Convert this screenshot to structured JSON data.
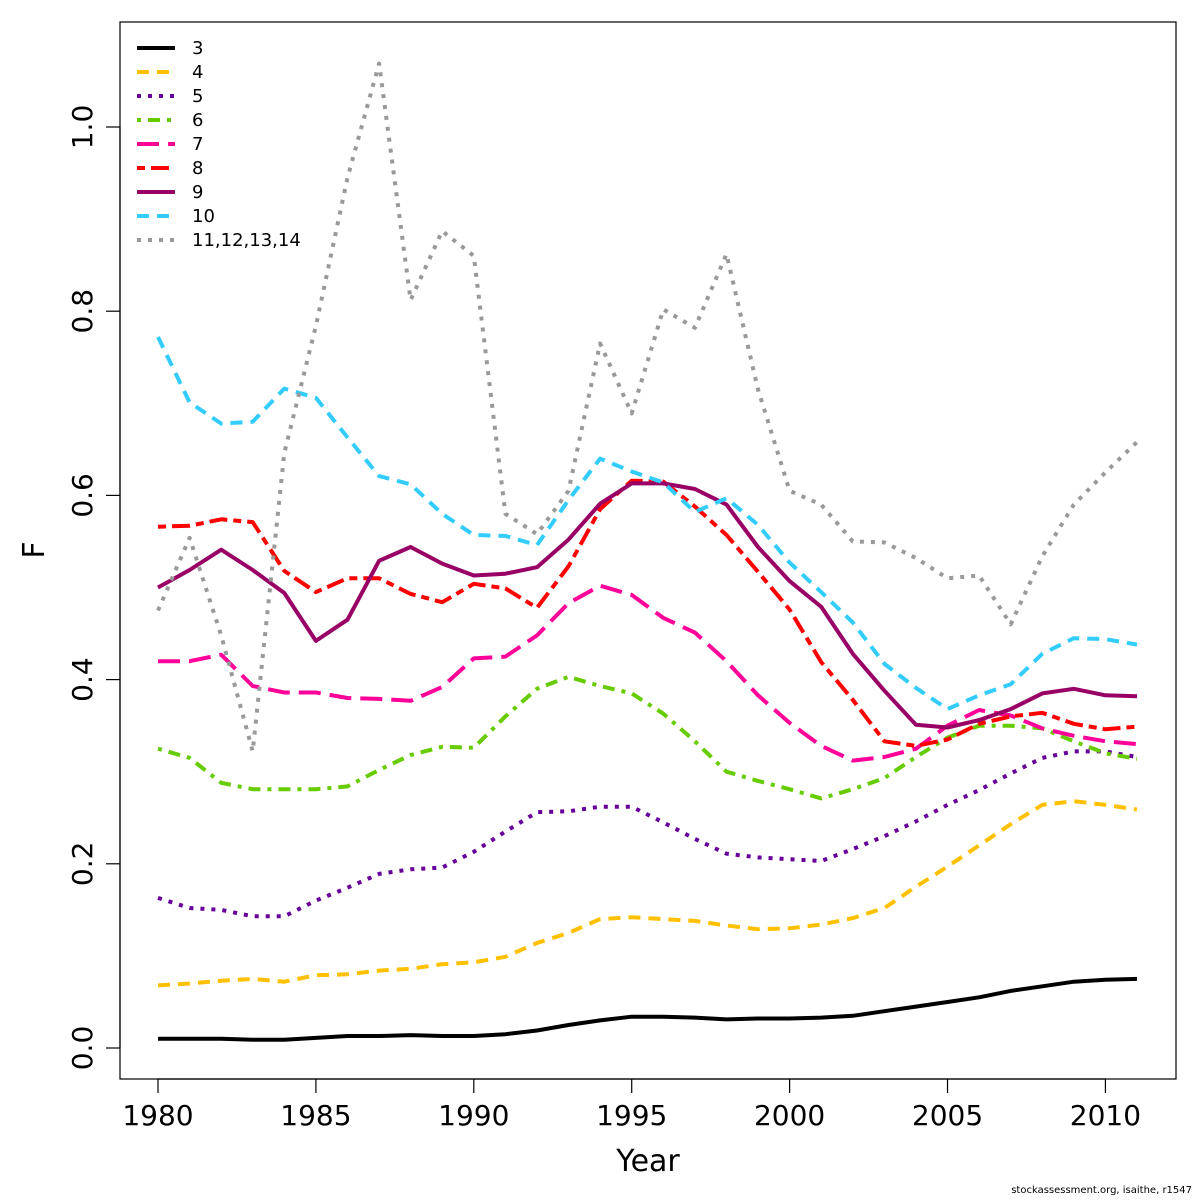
{
  "footer": "stockassessment.org, isaithe, r1547",
  "chart_data": {
    "type": "line",
    "title": "",
    "xlabel": "Year",
    "ylabel": "F",
    "xlim": [
      1980,
      2011
    ],
    "ylim": [
      0,
      1.1
    ],
    "xticks": [
      1980,
      1985,
      1990,
      1995,
      2000,
      2005,
      2010
    ],
    "yticks": [
      0.0,
      0.2,
      0.4,
      0.6,
      0.8,
      1.0
    ],
    "ytick_labels": [
      "0.0",
      "0.2",
      "0.4",
      "0.6",
      "0.8",
      "1.0"
    ],
    "legend_position": "top-left",
    "grid": false,
    "x": [
      1980,
      1981,
      1982,
      1983,
      1984,
      1985,
      1986,
      1987,
      1988,
      1989,
      1990,
      1991,
      1992,
      1993,
      1994,
      1995,
      1996,
      1997,
      1998,
      1999,
      2000,
      2001,
      2002,
      2003,
      2004,
      2005,
      2006,
      2007,
      2008,
      2009,
      2010,
      2011
    ],
    "series": [
      {
        "name": "3",
        "color": "#000000",
        "dash": "solid",
        "values": [
          0.01,
          0.01,
          0.01,
          0.009,
          0.009,
          0.011,
          0.013,
          0.013,
          0.014,
          0.013,
          0.013,
          0.015,
          0.019,
          0.025,
          0.03,
          0.034,
          0.034,
          0.033,
          0.031,
          0.032,
          0.032,
          0.033,
          0.035,
          0.04,
          0.045,
          0.05,
          0.055,
          0.062,
          0.067,
          0.072,
          0.074,
          0.075
        ]
      },
      {
        "name": "4",
        "color": "#FFC000",
        "dash": "dash",
        "values": [
          0.068,
          0.07,
          0.073,
          0.075,
          0.072,
          0.079,
          0.08,
          0.084,
          0.086,
          0.091,
          0.093,
          0.099,
          0.114,
          0.125,
          0.14,
          0.142,
          0.14,
          0.138,
          0.133,
          0.129,
          0.13,
          0.134,
          0.141,
          0.152,
          0.175,
          0.197,
          0.22,
          0.243,
          0.264,
          0.268,
          0.264,
          0.259
        ]
      },
      {
        "name": "5",
        "color": "#660099",
        "dash": "dot",
        "values": [
          0.163,
          0.152,
          0.15,
          0.143,
          0.143,
          0.16,
          0.174,
          0.189,
          0.194,
          0.196,
          0.213,
          0.235,
          0.256,
          0.257,
          0.262,
          0.262,
          0.245,
          0.227,
          0.211,
          0.207,
          0.205,
          0.203,
          0.216,
          0.23,
          0.246,
          0.264,
          0.28,
          0.298,
          0.315,
          0.322,
          0.322,
          0.316
        ]
      },
      {
        "name": "6",
        "color": "#66CC00",
        "dash": "dotdash",
        "values": [
          0.325,
          0.315,
          0.288,
          0.281,
          0.281,
          0.281,
          0.284,
          0.302,
          0.318,
          0.327,
          0.326,
          0.36,
          0.39,
          0.403,
          0.393,
          0.385,
          0.363,
          0.333,
          0.3,
          0.29,
          0.281,
          0.271,
          0.281,
          0.293,
          0.316,
          0.337,
          0.35,
          0.35,
          0.347,
          0.333,
          0.32,
          0.314
        ]
      },
      {
        "name": "7",
        "color": "#FF0099",
        "dash": "longdash",
        "values": [
          0.42,
          0.42,
          0.427,
          0.393,
          0.386,
          0.386,
          0.38,
          0.379,
          0.377,
          0.392,
          0.423,
          0.425,
          0.448,
          0.483,
          0.502,
          0.492,
          0.467,
          0.451,
          0.42,
          0.383,
          0.353,
          0.328,
          0.312,
          0.316,
          0.325,
          0.35,
          0.367,
          0.361,
          0.347,
          0.339,
          0.333,
          0.33
        ]
      },
      {
        "name": "8",
        "color": "#FF0000",
        "dash": "twodash",
        "values": [
          0.566,
          0.567,
          0.574,
          0.571,
          0.518,
          0.495,
          0.51,
          0.51,
          0.493,
          0.484,
          0.504,
          0.499,
          0.478,
          0.523,
          0.585,
          0.616,
          0.615,
          0.588,
          0.557,
          0.517,
          0.476,
          0.419,
          0.378,
          0.333,
          0.328,
          0.335,
          0.352,
          0.36,
          0.364,
          0.352,
          0.346,
          0.349
        ]
      },
      {
        "name": "9",
        "color": "#990066",
        "dash": "solid",
        "values": [
          0.5,
          0.519,
          0.541,
          0.519,
          0.494,
          0.442,
          0.465,
          0.529,
          0.544,
          0.526,
          0.513,
          0.515,
          0.522,
          0.552,
          0.591,
          0.613,
          0.613,
          0.607,
          0.59,
          0.544,
          0.507,
          0.479,
          0.428,
          0.388,
          0.351,
          0.348,
          0.356,
          0.368,
          0.385,
          0.39,
          0.383,
          0.382
        ]
      },
      {
        "name": "10",
        "color": "#33CCFF",
        "dash": "dash",
        "values": [
          0.772,
          0.701,
          0.678,
          0.68,
          0.716,
          0.706,
          0.663,
          0.621,
          0.612,
          0.58,
          0.557,
          0.556,
          0.546,
          0.595,
          0.64,
          0.626,
          0.614,
          0.582,
          0.597,
          0.568,
          0.527,
          0.495,
          0.462,
          0.417,
          0.391,
          0.368,
          0.383,
          0.395,
          0.428,
          0.445,
          0.444,
          0.438
        ]
      },
      {
        "name": "11,12,13,14",
        "color": "#999999",
        "dash": "dot",
        "values": [
          0.475,
          0.554,
          0.448,
          0.322,
          0.646,
          0.784,
          0.945,
          1.069,
          0.812,
          0.887,
          0.86,
          0.58,
          0.558,
          0.605,
          0.765,
          0.689,
          0.802,
          0.782,
          0.862,
          0.715,
          0.605,
          0.59,
          0.55,
          0.549,
          0.532,
          0.51,
          0.513,
          0.46,
          0.534,
          0.59,
          0.625,
          0.658
        ]
      }
    ]
  }
}
